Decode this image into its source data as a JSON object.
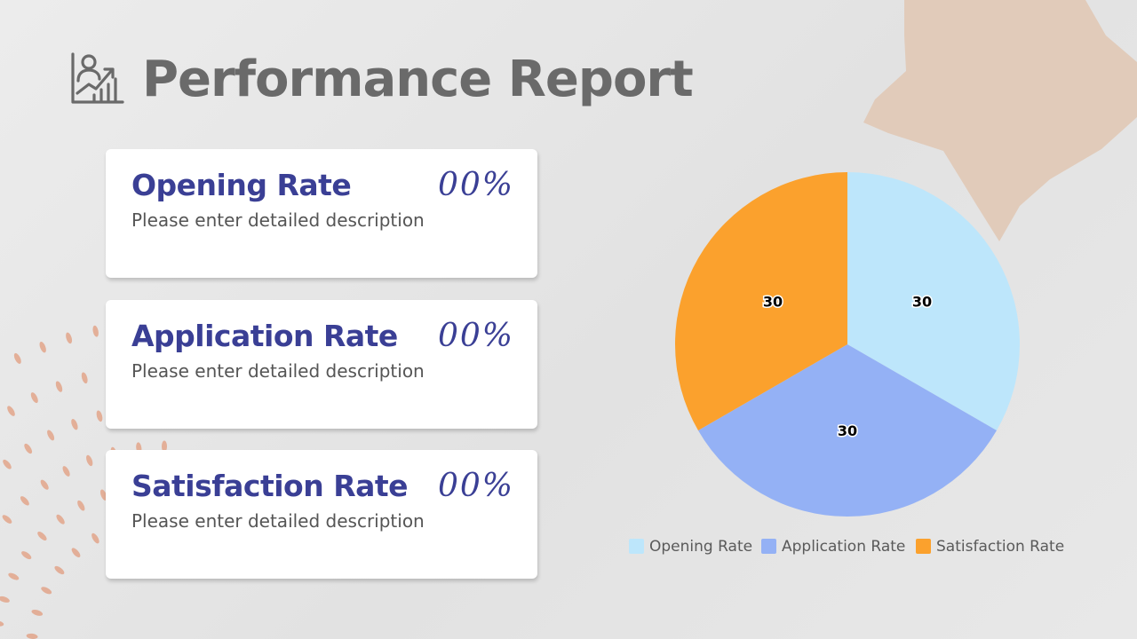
{
  "title": "Performance Report",
  "icons": {
    "header": "growth-chart-person-icon",
    "decor_star": "star-shape",
    "decor_dots": "radial-dot-burst"
  },
  "colors": {
    "title": "#6a6a6a",
    "accent": "#3a3f95",
    "star": "#e1c7b3",
    "dots": "#e2a48a"
  },
  "cards": [
    {
      "title": "Opening Rate",
      "value": "00%",
      "description": "Please enter detailed description"
    },
    {
      "title": "Application Rate",
      "value": "00%",
      "description": "Please enter detailed description"
    },
    {
      "title": "Satisfaction Rate",
      "value": "00%",
      "description": "Please enter detailed description"
    }
  ],
  "chart_data": {
    "type": "pie",
    "title": "",
    "series": [
      {
        "name": "Opening Rate",
        "value": 30,
        "color": "#bde6fb"
      },
      {
        "name": "Application Rate",
        "value": 30,
        "color": "#94b1f5"
      },
      {
        "name": "Satisfaction Rate",
        "value": 30,
        "color": "#fba12d"
      }
    ],
    "show_values": true,
    "legend": "bottom"
  }
}
